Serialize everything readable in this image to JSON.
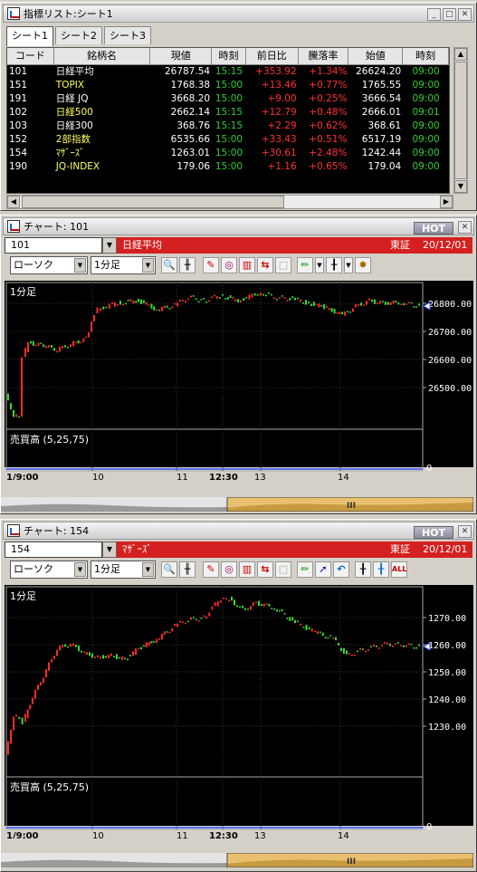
{
  "list": {
    "title": "指標リスト:シート1",
    "tabs": [
      "シート1",
      "シート2",
      "シート3"
    ],
    "columns": [
      "コード",
      "銘柄名",
      "現値",
      "時刻",
      "前日比",
      "騰落率",
      "始値",
      "時刻"
    ],
    "rows": [
      {
        "code": "101",
        "name": "日経平均",
        "price": "26787.54",
        "time": "15:15",
        "change": "+353.92",
        "pct": "+1.34%",
        "open": "26624.20",
        "otime": "09:00"
      },
      {
        "code": "151",
        "name": "TOPIX",
        "price": "1768.38",
        "time": "15:00",
        "change": "+13.46",
        "pct": "+0.77%",
        "open": "1765.55",
        "otime": "09:00"
      },
      {
        "code": "191",
        "name": "日経 JQ",
        "price": "3668.20",
        "time": "15:00",
        "change": "+9.00",
        "pct": "+0.25%",
        "open": "3666.54",
        "otime": "09:00"
      },
      {
        "code": "102",
        "name": "日経500",
        "price": "2662.14",
        "time": "15:15",
        "change": "+12.79",
        "pct": "+0.48%",
        "open": "2666.01",
        "otime": "09:01"
      },
      {
        "code": "103",
        "name": "日経300",
        "price": "368.76",
        "time": "15:15",
        "change": "+2.29",
        "pct": "+0.62%",
        "open": "368.61",
        "otime": "09:00"
      },
      {
        "code": "152",
        "name": "2部指数",
        "price": "6535.66",
        "time": "15:00",
        "change": "+33.43",
        "pct": "+0.51%",
        "open": "6517.19",
        "otime": "09:00"
      },
      {
        "code": "154",
        "name": "ﾏｻﾞｰｽﾞ",
        "price": "1263.01",
        "time": "15:00",
        "change": "+30.61",
        "pct": "+2.48%",
        "open": "1242.44",
        "otime": "09:00"
      },
      {
        "code": "190",
        "name": "JQ-INDEX",
        "price": "179.06",
        "time": "15:00",
        "change": "+1.16",
        "pct": "+0.65%",
        "open": "179.04",
        "otime": "09:00"
      }
    ]
  },
  "chart1": {
    "title": "チャート: 101",
    "hot": "HOT",
    "code": "101",
    "name": "日経平均",
    "market": "東証",
    "date": "20/12/01",
    "chart_type": "ローソク",
    "interval": "1分足",
    "panel_label": "1分足",
    "volume_label": "売買高 (5,25,75)",
    "volume_zero": "0",
    "scroll_mark": "III",
    "x_labels": [
      "1/9:00",
      "10",
      "11",
      "12:30",
      "13",
      "14"
    ],
    "y_labels": [
      "26800.00",
      "26700.00",
      "26600.00",
      "26500.00"
    ]
  },
  "chart2": {
    "title": "チャート: 154",
    "hot": "HOT",
    "code": "154",
    "name": "ﾏｻﾞｰｽﾞ",
    "market": "東証",
    "date": "20/12/01",
    "chart_type": "ローソク",
    "interval": "1分足",
    "panel_label": "1分足",
    "volume_label": "売買高 (5,25,75)",
    "volume_zero": "0",
    "scroll_mark": "III",
    "x_labels": [
      "1/9:00",
      "10",
      "11",
      "12:30",
      "13",
      "14"
    ],
    "y_labels": [
      "1270.00",
      "1260.00",
      "1250.00",
      "1240.00",
      "1230.00"
    ]
  },
  "colors": {
    "red": "#ff3030",
    "green": "#33cc33",
    "yellow": "#ffff60",
    "white": "#ffffff",
    "bar_red": "#d42020"
  }
}
